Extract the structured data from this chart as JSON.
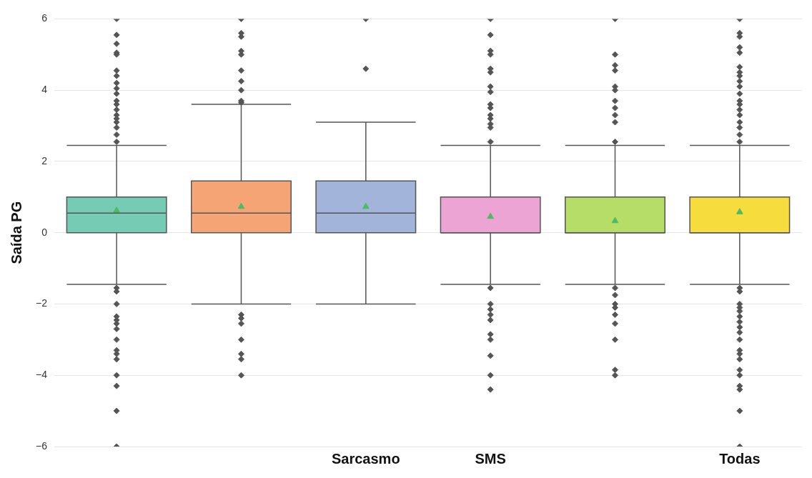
{
  "chart_data": {
    "type": "box",
    "ylabel": "Saída PG",
    "categories": [
      null,
      null,
      "Sarcasmo",
      "SMS",
      null,
      "Todas"
    ],
    "colors": [
      "#75cbb3",
      "#f5a575",
      "#a3b4da",
      "#eba4d4",
      "#b5dd67",
      "#f6dc3d"
    ],
    "boxes": [
      {
        "low": -1.45,
        "q1": 0,
        "median": 0.55,
        "q3": 1,
        "high": 2.45,
        "mean": 0.62,
        "outliers": [
          6,
          5.55,
          5.3,
          5.05,
          5.0,
          4.55,
          4.4,
          4.2,
          4.05,
          3.9,
          3.7,
          3.6,
          3.45,
          3.3,
          3.2,
          3.1,
          2.95,
          2.75,
          2.55,
          -1.55,
          -1.65,
          -2.0,
          -2.35,
          -2.45,
          -2.55,
          -2.7,
          -3.0,
          -3.3,
          -3.4,
          -3.55,
          -4.0,
          -4.3,
          -5.0,
          -6
        ]
      },
      {
        "low": -2,
        "q1": 0,
        "median": 0.55,
        "q3": 1.45,
        "high": 3.6,
        "mean": 0.73,
        "outliers": [
          6,
          5.6,
          5.5,
          5.1,
          5.0,
          4.55,
          4.25,
          4.0,
          3.7,
          3.65,
          -2.3,
          -2.4,
          -2.55,
          -3.0,
          -3.4,
          -3.55,
          -4.0
        ]
      },
      {
        "low": -2,
        "q1": 0,
        "median": 0.55,
        "q3": 1.45,
        "high": 3.1,
        "mean": 0.73,
        "outliers": [
          6,
          4.6
        ]
      },
      {
        "low": -1.45,
        "q1": 0,
        "median": 0,
        "q3": 1,
        "high": 2.45,
        "mean": 0.45,
        "outliers": [
          6,
          5.55,
          5.1,
          5.0,
          4.6,
          4.5,
          4.1,
          3.95,
          3.6,
          3.5,
          3.3,
          3.2,
          3.05,
          2.95,
          2.55,
          -1.55,
          -2.0,
          -2.15,
          -2.3,
          -2.45,
          -2.85,
          -3.0,
          -3.45,
          -4.0,
          -4.4
        ]
      },
      {
        "low": -1.45,
        "q1": 0,
        "median": 0,
        "q3": 1,
        "high": 2.45,
        "mean": 0.33,
        "outliers": [
          6,
          5.0,
          4.7,
          4.55,
          4.1,
          4.0,
          3.7,
          3.5,
          3.3,
          3.1,
          2.55,
          -1.55,
          -1.75,
          -2.0,
          -2.1,
          -2.3,
          -2.55,
          -3.0,
          -3.85,
          -4.0
        ]
      },
      {
        "low": -1.45,
        "q1": 0,
        "median": 0,
        "q3": 1,
        "high": 2.45,
        "mean": 0.58,
        "outliers": [
          6,
          5.6,
          5.5,
          5.2,
          5.05,
          4.65,
          4.5,
          4.4,
          4.25,
          4.1,
          3.9,
          3.7,
          3.6,
          3.45,
          3.3,
          3.1,
          2.95,
          2.75,
          2.55,
          -1.55,
          -1.65,
          -2.0,
          -2.1,
          -2.2,
          -2.35,
          -2.5,
          -2.65,
          -2.8,
          -3.0,
          -3.3,
          -3.4,
          -3.55,
          -3.85,
          -4.0,
          -4.3,
          -4.4,
          -5.0,
          -6
        ]
      }
    ],
    "ylim": [
      -6,
      6
    ],
    "yticks": [
      -6,
      -4,
      -2,
      0,
      2,
      4,
      6
    ],
    "grid": "y",
    "marker": "diamond"
  }
}
